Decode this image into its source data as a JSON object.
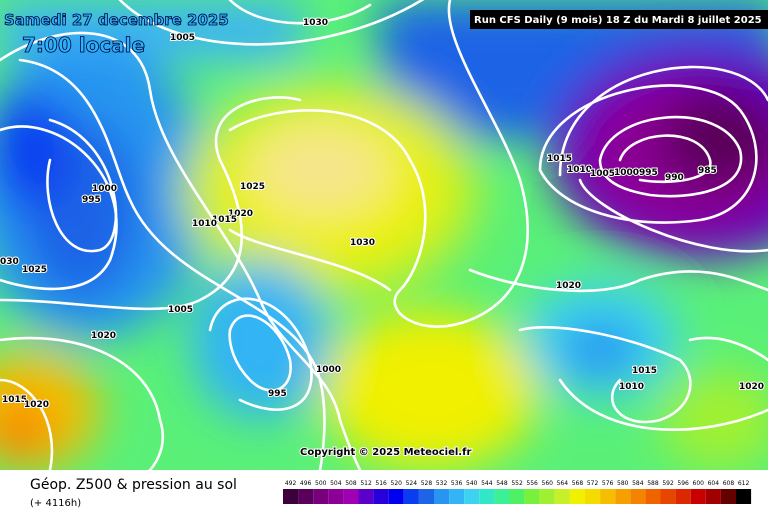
{
  "header": {
    "date": "Samedi 27 decembre 2025",
    "time": "7:00 locale",
    "run": "Run CFS Daily (9 mois) 18 Z du Mardi 8 juillet 2025"
  },
  "isobar_labels": [
    "1030",
    "1005",
    "1000",
    "995",
    "1025",
    "1020",
    "1015",
    "1010",
    "1030",
    "030",
    "1025",
    "1005",
    "1020",
    "1000",
    "995",
    "1015",
    "1020",
    "1015",
    "1010",
    "1005",
    "1000",
    "995",
    "990",
    "985",
    "1020",
    "1015",
    "1010",
    "1020"
  ],
  "copyright": "Copyright © 2025 Meteociel.fr",
  "footer": {
    "title": "Géop. Z500 & pression au sol",
    "subtitle": "(+ 4116h)"
  },
  "legend": {
    "values": [
      "492",
      "496",
      "500",
      "504",
      "508",
      "512",
      "516",
      "520",
      "524",
      "528",
      "532",
      "536",
      "540",
      "544",
      "548",
      "552",
      "556",
      "560",
      "564",
      "568",
      "572",
      "576",
      "580",
      "584",
      "588",
      "592",
      "596",
      "600",
      "604",
      "608",
      "612"
    ],
    "colors": [
      "#3c003c",
      "#5a005a",
      "#78007d",
      "#8c0096",
      "#a000b4",
      "#5a00c8",
      "#2800dc",
      "#0000f0",
      "#0a3cf0",
      "#1e64e6",
      "#2896f0",
      "#32b4f5",
      "#3cd2f0",
      "#32e6c8",
      "#3cf096",
      "#50f064",
      "#78f03c",
      "#a0f032",
      "#c8f028",
      "#f0f000",
      "#f5dc00",
      "#f5be00",
      "#f5a000",
      "#f58200",
      "#f06400",
      "#e64600",
      "#dc2800",
      "#c80000",
      "#a00000",
      "#640000",
      "#000000"
    ]
  }
}
